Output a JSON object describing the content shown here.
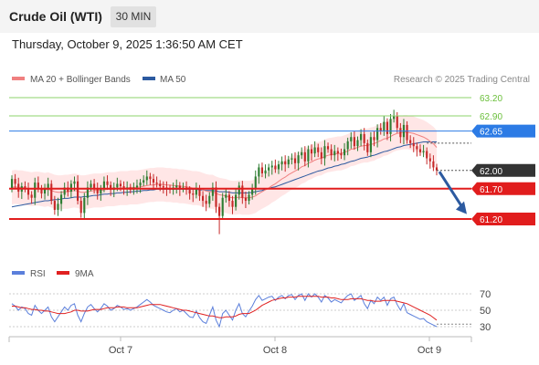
{
  "header": {
    "title": "Crude Oil (WTI)",
    "timeframe": "30 MIN"
  },
  "datetime": "Thursday, October 9, 2025 1:36:50 AM CET",
  "legend": {
    "ma20_label": "MA 20 + Bollinger Bands",
    "ma50_label": "MA 50",
    "ma20_color": "#f08080",
    "ma50_color": "#2c5aa0",
    "credit": "Research © 2025 Trading Central"
  },
  "rsi_legend": {
    "rsi_label": "RSI",
    "ma_label": "9MA",
    "rsi_color": "#5b7fdb",
    "ma_color": "#e02020"
  },
  "colors": {
    "up": "#2e7d32",
    "down": "#c62828",
    "resistance_green": "#8ed36b",
    "ma50_level": "#2c7be5",
    "support_red": "#e11d1d",
    "current": "#333333",
    "arrow": "#2c5aa0"
  },
  "chart_data": [
    {
      "type": "line",
      "title": "",
      "x_ticks": [
        "Oct 7",
        "Oct 8",
        "Oct 9"
      ],
      "y_range": [
        60.7,
        63.4
      ],
      "levels": [
        {
          "value": 63.2,
          "label": "63.20",
          "kind": "resistance"
        },
        {
          "value": 62.9,
          "label": "62.90",
          "kind": "resistance"
        },
        {
          "value": 62.65,
          "label": "62.65",
          "kind": "ma50"
        },
        {
          "value": 62.0,
          "label": "62.00",
          "kind": "current"
        },
        {
          "value": 61.7,
          "label": "61.70",
          "kind": "support"
        },
        {
          "value": 61.2,
          "label": "61.20",
          "kind": "support"
        }
      ],
      "close": [
        61.86,
        61.78,
        61.65,
        61.74,
        61.7,
        61.6,
        61.55,
        61.8,
        61.7,
        61.62,
        61.7,
        61.78,
        61.5,
        61.35,
        61.45,
        61.6,
        61.72,
        61.65,
        61.78,
        61.82,
        61.5,
        61.3,
        61.55,
        61.72,
        61.78,
        61.7,
        61.62,
        61.7,
        61.82,
        61.76,
        61.68,
        61.72,
        61.78,
        61.74,
        61.7,
        61.72,
        61.68,
        61.72,
        61.75,
        61.8,
        61.84,
        61.9,
        61.86,
        61.8,
        61.78,
        61.74,
        61.72,
        61.7,
        61.68,
        61.72,
        61.75,
        61.7,
        61.72,
        61.68,
        61.62,
        61.6,
        61.7,
        61.58,
        61.5,
        61.45,
        61.58,
        61.72,
        61.4,
        61.25,
        61.55,
        61.6,
        61.5,
        61.4,
        61.6,
        61.75,
        61.55,
        61.5,
        61.6,
        61.7,
        61.9,
        62.05,
        61.95,
        62.0,
        62.05,
        62.08,
        62.02,
        62.1,
        62.15,
        62.1,
        62.18,
        62.2,
        62.12,
        62.25,
        62.3,
        62.15,
        62.35,
        62.28,
        62.38,
        62.3,
        62.2,
        62.4,
        62.35,
        62.25,
        62.32,
        62.28,
        62.25,
        62.35,
        62.48,
        62.55,
        62.4,
        62.5,
        62.6,
        62.45,
        62.3,
        62.55,
        62.5,
        62.7,
        62.65,
        62.8,
        62.6,
        62.85,
        62.9,
        62.7,
        62.55,
        62.75,
        62.5,
        62.45,
        62.4,
        62.35,
        62.3,
        62.32,
        62.2,
        62.15,
        62.05,
        62.0
      ],
      "open": [
        61.7,
        61.86,
        61.78,
        61.65,
        61.74,
        61.7,
        61.6,
        61.55,
        61.8,
        61.7,
        61.62,
        61.7,
        61.78,
        61.5,
        61.35,
        61.45,
        61.6,
        61.72,
        61.65,
        61.78,
        61.82,
        61.5,
        61.3,
        61.55,
        61.72,
        61.78,
        61.7,
        61.62,
        61.7,
        61.82,
        61.76,
        61.68,
        61.72,
        61.78,
        61.74,
        61.7,
        61.72,
        61.68,
        61.72,
        61.75,
        61.8,
        61.84,
        61.9,
        61.86,
        61.8,
        61.78,
        61.74,
        61.72,
        61.7,
        61.68,
        61.72,
        61.75,
        61.7,
        61.72,
        61.68,
        61.62,
        61.6,
        61.7,
        61.58,
        61.5,
        61.45,
        61.58,
        61.72,
        61.4,
        61.25,
        61.55,
        61.6,
        61.5,
        61.4,
        61.6,
        61.75,
        61.55,
        61.5,
        61.6,
        61.7,
        61.9,
        62.05,
        61.95,
        62.0,
        62.05,
        62.08,
        62.02,
        62.1,
        62.15,
        62.1,
        62.18,
        62.2,
        62.12,
        62.25,
        62.3,
        62.15,
        62.35,
        62.28,
        62.38,
        62.3,
        62.2,
        62.4,
        62.35,
        62.25,
        62.32,
        62.28,
        62.25,
        62.35,
        62.48,
        62.55,
        62.4,
        62.5,
        62.6,
        62.45,
        62.3,
        62.55,
        62.5,
        62.7,
        62.65,
        62.8,
        62.6,
        62.85,
        62.9,
        62.7,
        62.55,
        62.75,
        62.5,
        62.45,
        62.4,
        62.35,
        62.3,
        62.32,
        62.2,
        62.15,
        62.05
      ],
      "low_wick_notes": {
        "deep_low": 60.95
      },
      "ma20": [
        61.72,
        61.73,
        61.72,
        61.72,
        61.71,
        61.7,
        61.69,
        61.7,
        61.7,
        61.69,
        61.68,
        61.69,
        61.67,
        61.65,
        61.64,
        61.64,
        61.65,
        61.65,
        61.66,
        61.67,
        61.66,
        61.64,
        61.64,
        61.65,
        61.66,
        61.67,
        61.67,
        61.67,
        61.68,
        61.69,
        61.69,
        61.69,
        61.7,
        61.71,
        61.71,
        61.71,
        61.72,
        61.72,
        61.72,
        61.73,
        61.74,
        61.75,
        61.76,
        61.76,
        61.77,
        61.77,
        61.77,
        61.76,
        61.76,
        61.75,
        61.75,
        61.74,
        61.74,
        61.73,
        61.72,
        61.71,
        61.71,
        61.7,
        61.68,
        61.66,
        61.65,
        61.65,
        61.62,
        61.6,
        61.59,
        61.58,
        61.56,
        61.55,
        61.55,
        61.56,
        61.55,
        61.55,
        61.55,
        61.56,
        61.58,
        61.62,
        61.65,
        61.68,
        61.71,
        61.75,
        61.78,
        61.82,
        61.86,
        61.89,
        61.93,
        61.96,
        61.99,
        62.02,
        62.06,
        62.08,
        62.12,
        62.14,
        62.17,
        62.19,
        62.2,
        62.23,
        62.25,
        62.26,
        62.27,
        62.28,
        62.28,
        62.3,
        62.32,
        62.35,
        62.36,
        62.38,
        62.4,
        62.41,
        62.41,
        62.43,
        62.44,
        62.47,
        62.49,
        62.52,
        62.53,
        62.56,
        62.59,
        62.61,
        62.62,
        62.63,
        62.63,
        62.62,
        62.61,
        62.59,
        62.57,
        62.55,
        62.52,
        62.48,
        62.44,
        62.38
      ],
      "ma50": [
        61.4,
        61.41,
        61.42,
        61.43,
        61.44,
        61.45,
        61.46,
        61.47,
        61.48,
        61.49,
        61.5,
        61.5,
        61.51,
        61.52,
        61.52,
        61.53,
        61.54,
        61.54,
        61.55,
        61.56,
        61.56,
        61.56,
        61.57,
        61.57,
        61.58,
        61.59,
        61.59,
        61.6,
        61.61,
        61.61,
        61.62,
        61.62,
        61.63,
        61.63,
        61.64,
        61.64,
        61.65,
        61.65,
        61.66,
        61.66,
        61.67,
        61.67,
        61.68,
        61.68,
        61.69,
        61.69,
        61.69,
        61.69,
        61.69,
        61.69,
        61.69,
        61.69,
        61.69,
        61.69,
        61.69,
        61.69,
        61.69,
        61.68,
        61.68,
        61.67,
        61.67,
        61.67,
        61.66,
        61.65,
        61.65,
        61.65,
        61.64,
        61.63,
        61.63,
        61.63,
        61.63,
        61.63,
        61.63,
        61.64,
        61.65,
        61.66,
        61.67,
        61.69,
        61.7,
        61.72,
        61.73,
        61.75,
        61.77,
        61.79,
        61.81,
        61.83,
        61.85,
        61.87,
        61.89,
        61.91,
        61.93,
        61.95,
        61.97,
        61.99,
        62.0,
        62.02,
        62.04,
        62.05,
        62.07,
        62.08,
        62.1,
        62.11,
        62.13,
        62.15,
        62.16,
        62.18,
        62.2,
        62.21,
        62.22,
        62.24,
        62.25,
        62.27,
        62.29,
        62.31,
        62.32,
        62.34,
        62.36,
        62.38,
        62.39,
        62.41,
        62.42,
        62.43,
        62.44,
        62.45,
        62.46,
        62.47,
        62.47,
        62.47,
        62.47,
        62.47
      ]
    },
    {
      "type": "line",
      "title": "",
      "y_ticks": [
        "70",
        "50",
        "30"
      ],
      "y_range": [
        25,
        80
      ],
      "rsi": [
        58,
        55,
        50,
        54,
        52,
        46,
        44,
        56,
        50,
        46,
        50,
        54,
        42,
        36,
        42,
        48,
        54,
        50,
        56,
        58,
        44,
        36,
        46,
        54,
        57,
        52,
        48,
        52,
        58,
        55,
        50,
        52,
        56,
        54,
        51,
        52,
        50,
        52,
        54,
        57,
        60,
        63,
        60,
        56,
        54,
        52,
        50,
        48,
        47,
        50,
        52,
        48,
        50,
        46,
        42,
        41,
        49,
        41,
        36,
        34,
        44,
        54,
        38,
        30,
        46,
        50,
        44,
        38,
        50,
        58,
        46,
        42,
        49,
        55,
        63,
        68,
        62,
        64,
        66,
        67,
        62,
        66,
        68,
        64,
        68,
        69,
        63,
        68,
        70,
        62,
        70,
        66,
        70,
        66,
        60,
        68,
        65,
        60,
        63,
        61,
        59,
        64,
        68,
        70,
        62,
        65,
        68,
        58,
        52,
        62,
        58,
        66,
        62,
        66,
        56,
        64,
        66,
        57,
        50,
        58,
        47,
        45,
        43,
        41,
        39,
        40,
        36,
        34,
        32,
        30
      ],
      "rsi_ma": [
        55,
        55,
        54,
        53,
        53,
        52,
        51,
        51,
        50,
        50,
        49,
        49,
        48,
        47,
        46,
        46,
        46,
        47,
        48,
        50,
        50,
        49,
        49,
        49,
        50,
        51,
        51,
        51,
        52,
        53,
        53,
        53,
        54,
        54,
        54,
        53,
        53,
        53,
        53,
        54,
        55,
        56,
        57,
        57,
        57,
        57,
        56,
        55,
        54,
        53,
        52,
        51,
        50,
        50,
        49,
        48,
        47,
        46,
        45,
        44,
        43,
        43,
        42,
        41,
        41,
        42,
        42,
        42,
        43,
        45,
        46,
        46,
        46,
        48,
        50,
        53,
        56,
        58,
        60,
        62,
        63,
        64,
        65,
        65,
        66,
        66,
        66,
        67,
        67,
        67,
        67,
        67,
        67,
        67,
        66,
        66,
        66,
        65,
        65,
        64,
        63,
        63,
        63,
        64,
        64,
        64,
        64,
        63,
        62,
        62,
        61,
        61,
        61,
        62,
        62,
        62,
        62,
        61,
        60,
        59,
        58,
        56,
        54,
        52,
        50,
        48,
        46,
        44,
        41,
        38
      ]
    }
  ]
}
